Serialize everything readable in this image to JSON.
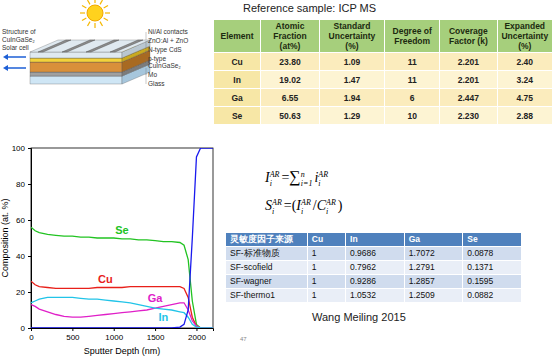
{
  "diagram": {
    "title_lines": [
      "Structure of",
      "CuInGaSe₂",
      "Solar cell"
    ],
    "layers": [
      {
        "label": [
          "Ni/Al contacts"
        ]
      },
      {
        "label": [
          "ZnO:Al + ZnO"
        ]
      },
      {
        "label": [
          "N-type CdS"
        ]
      },
      {
        "label": [
          "p-type",
          "CuInGaSe₂"
        ]
      },
      {
        "label": [
          "Mo"
        ]
      },
      {
        "label": [
          "Glass"
        ]
      }
    ]
  },
  "reference_table": {
    "title": "Reference sample: ICP MS",
    "columns": [
      "Element",
      "Atomic Fraction (at%)",
      "Standard Uncertainty (%)",
      "Degree of Freedom",
      "Coverage Factor (k)",
      "Expanded Uncertainty (%)"
    ],
    "rows": [
      [
        "Cu",
        "23.80",
        "1.09",
        "11",
        "2.201",
        "2.40"
      ],
      [
        "In",
        "19.02",
        "1.47",
        "11",
        "2.201",
        "3.24"
      ],
      [
        "Ga",
        "6.55",
        "1.94",
        "6",
        "2.447",
        "4.75"
      ],
      [
        "Se",
        "50.63",
        "1.29",
        "10",
        "2.230",
        "2.88"
      ]
    ]
  },
  "chart_data": {
    "type": "line",
    "xlabel": "Sputter Depth (nm)",
    "ylabel": "Composition (at. %)",
    "x": [
      0,
      50,
      100,
      200,
      300,
      400,
      500,
      600,
      700,
      800,
      900,
      1000,
      1100,
      1200,
      1300,
      1400,
      1500,
      1600,
      1700,
      1800,
      1850,
      1900,
      1950,
      2000,
      2050,
      2100,
      2200
    ],
    "xlim": [
      0,
      2200
    ],
    "ylim": [
      0,
      100
    ],
    "xticks": [
      0,
      500,
      1000,
      1500,
      2000
    ],
    "yticks": [
      0,
      20,
      40,
      60,
      80,
      100
    ],
    "series": [
      {
        "name": "Se",
        "color": "#22c322",
        "values": [
          56,
          54,
          53,
          52,
          51.5,
          51,
          51,
          50.5,
          50.5,
          50,
          50,
          50,
          49.5,
          49.5,
          49,
          49,
          48.5,
          48,
          48,
          47.5,
          46,
          38,
          15,
          2,
          0,
          0,
          0
        ]
      },
      {
        "name": "Cu",
        "color": "#e8201a",
        "values": [
          26,
          24,
          23,
          22.5,
          22,
          22,
          22,
          22,
          22,
          22.5,
          22.5,
          22.5,
          22.5,
          23,
          23,
          23,
          23,
          23,
          23,
          23,
          22,
          17,
          6,
          1,
          0,
          0,
          0
        ]
      },
      {
        "name": "Ga",
        "color": "#e020c8",
        "values": [
          13,
          12,
          10.5,
          9,
          7.5,
          6.5,
          6,
          6,
          6.5,
          7,
          7.5,
          8,
          8.5,
          9,
          9.5,
          10,
          11,
          12,
          13,
          14,
          14,
          10,
          4,
          1,
          0,
          0,
          0
        ]
      },
      {
        "name": "In",
        "color": "#22c4e8",
        "values": [
          14,
          15,
          16,
          17,
          17,
          17,
          17,
          16.5,
          16,
          16,
          15.5,
          15,
          14.5,
          14,
          13,
          12,
          11,
          10.5,
          10,
          9,
          8.5,
          6,
          2,
          0.5,
          0,
          0,
          0
        ]
      },
      {
        "color": "#1a1aee",
        "values": [
          0,
          0,
          0,
          0,
          0,
          0,
          0,
          0,
          0,
          0,
          0,
          0,
          0,
          0,
          0,
          0,
          0,
          0,
          0,
          0.5,
          2,
          10,
          50,
          95,
          100,
          100,
          100
        ]
      }
    ]
  },
  "formulas": [
    {
      "parts": [
        [
          "I",
          "i",
          "AR"
        ],
        [
          "="
        ],
        [
          "∑",
          "i=1",
          "n"
        ],
        [
          "i",
          "i",
          "AR"
        ]
      ]
    },
    {
      "parts": [
        [
          "S",
          "i",
          "AR"
        ],
        [
          "=("
        ],
        [
          "I",
          "i",
          "AR"
        ],
        [
          "/"
        ],
        [
          "C",
          "i",
          "AR"
        ],
        [
          ")"
        ]
      ]
    }
  ],
  "sf_table": {
    "columns": [
      "灵敏度因子来源",
      "Cu",
      "In",
      "Ga",
      "Se"
    ],
    "rows": [
      [
        "SF-标准物质",
        "1",
        "0.9686",
        "1.7072",
        "0.0878"
      ],
      [
        "SF-scofield",
        "1",
        "0.7962",
        "1.2791",
        "0.1371"
      ],
      [
        "SF-wagner",
        "1",
        "0.9286",
        "1.2857",
        "0.1595"
      ],
      [
        "SF-thermo1",
        "1",
        "1.0532",
        "1.2509",
        "0.0882"
      ]
    ]
  },
  "caption": "Wang Meiling 2015",
  "page_number": "47"
}
